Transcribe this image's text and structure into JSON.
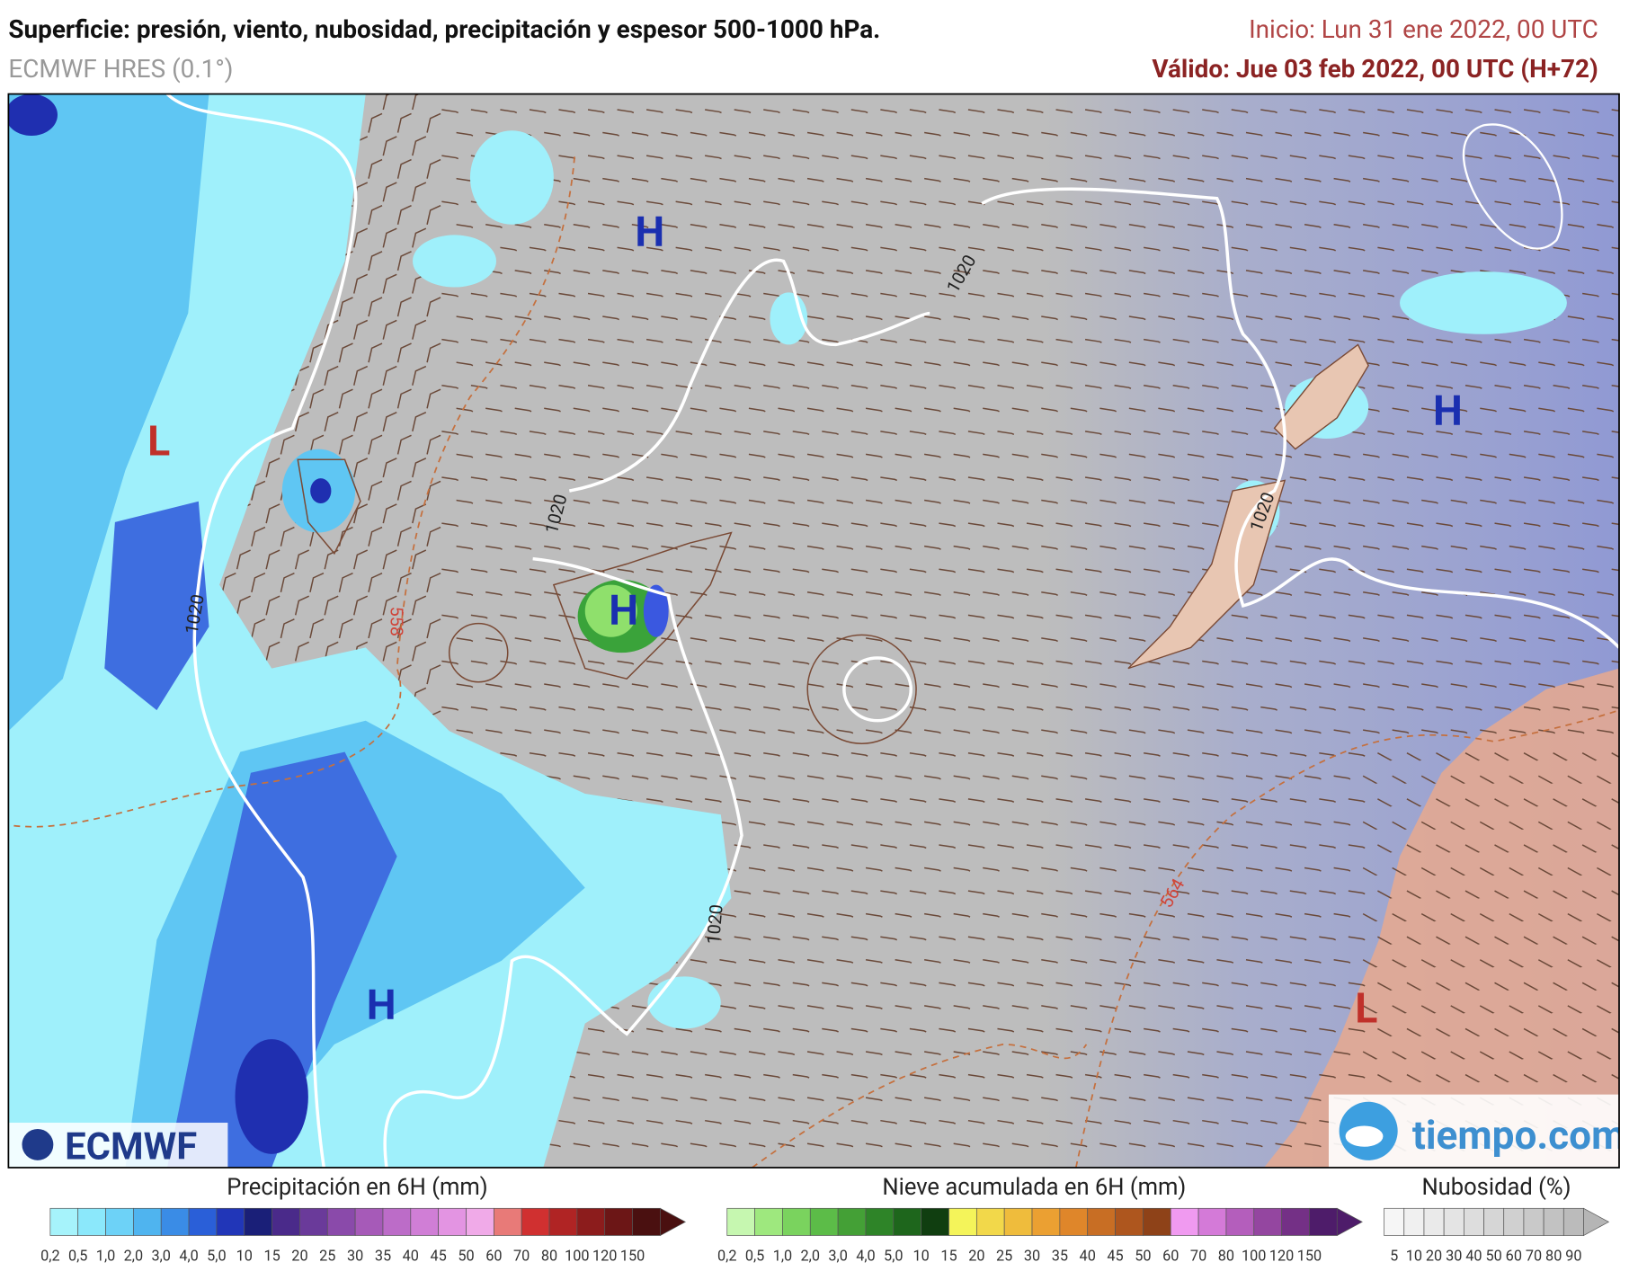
{
  "header": {
    "title": "Superficie: presión, viento, nubosidad, precipitación y espesor 500-1000 hPa.",
    "model": "ECMWF HRES (0.1°)",
    "init": "Inicio: Lun 31 ene 2022, 00 UTC",
    "valid": "Válido: Jue 03 feb 2022, 00 UTC (H+72)"
  },
  "map": {
    "pressure_centers": [
      "H",
      "H",
      "H",
      "H",
      "L",
      "L"
    ],
    "isobar_labels": [
      "1020",
      "1020",
      "1020",
      "1020",
      "1020"
    ],
    "thickness_labels": [
      "558",
      "564"
    ]
  },
  "logos": {
    "left": "ECMWF",
    "right": "tiempo.com"
  },
  "legends": [
    {
      "title": "Precipitación en 6H (mm)",
      "labels": [
        "0,2",
        "0,5",
        "1,0",
        "2,0",
        "3,0",
        "4,0",
        "5,0",
        "10",
        "15",
        "20",
        "25",
        "30",
        "35",
        "40",
        "45",
        "50",
        "60",
        "70",
        "80",
        "100",
        "120",
        "150"
      ]
    },
    {
      "title": "Nieve acumulada en 6H (mm)",
      "labels": [
        "0,2",
        "0,5",
        "1,0",
        "2,0",
        "3,0",
        "4,0",
        "5,0",
        "10",
        "15",
        "20",
        "25",
        "30",
        "35",
        "40",
        "45",
        "50",
        "60",
        "70",
        "80",
        "100",
        "120",
        "150"
      ]
    },
    {
      "title": "Nubosidad (%)",
      "labels": [
        "5",
        "10",
        "20",
        "30",
        "40",
        "50",
        "60",
        "70",
        "80",
        "90"
      ]
    }
  ]
}
